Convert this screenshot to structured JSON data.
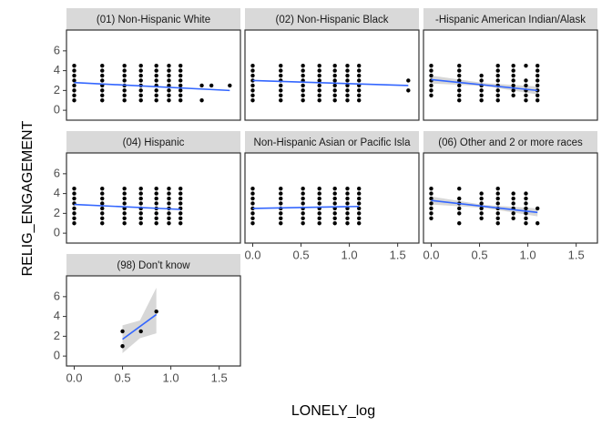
{
  "chart_data": {
    "type": "faceted-scatter",
    "x_label": "LONELY_log",
    "y_label": "RELIG_ENGAGEMENT",
    "xlim": [
      -0.08,
      1.72
    ],
    "ylim": [
      -1.0,
      8.1
    ],
    "xticks": [
      {
        "value": 0,
        "label": "0.0"
      },
      {
        "value": 0.5,
        "label": "0.5"
      },
      {
        "value": 1,
        "label": "1.0"
      },
      {
        "value": 1.5,
        "label": "1.5"
      }
    ],
    "yticks": [
      0,
      2,
      4,
      6
    ],
    "point_color": "#000000",
    "fit_color": "#3366ff",
    "band_color": "#bdbdbd",
    "facets": [
      {
        "label": "(01) Non-Hispanic White",
        "columns": [
          {
            "x": 0,
            "y": [
              1,
              1.5,
              2,
              2.5,
              3,
              3.5,
              4,
              4.5
            ]
          },
          {
            "x": 0.29,
            "y": [
              1,
              1.5,
              2,
              2.5,
              3,
              3.5,
              4,
              4.5
            ]
          },
          {
            "x": 0.52,
            "y": [
              1,
              1.5,
              2,
              2.5,
              3,
              3.5,
              4,
              4.5
            ]
          },
          {
            "x": 0.69,
            "y": [
              1,
              1.5,
              2,
              2.5,
              3,
              3.5,
              4,
              4.5
            ]
          },
          {
            "x": 0.85,
            "y": [
              1,
              1.5,
              2,
              2.5,
              3,
              3.5,
              4,
              4.5
            ]
          },
          {
            "x": 0.98,
            "y": [
              1,
              1.5,
              2,
              2.5,
              3,
              3.5,
              4,
              4.5
            ]
          },
          {
            "x": 1.1,
            "y": [
              1,
              1.5,
              2,
              2.5,
              3,
              3.5,
              4,
              4.5
            ]
          },
          {
            "x": 1.32,
            "y": [
              1,
              2.5
            ]
          },
          {
            "x": 1.42,
            "y": [
              2.5
            ]
          },
          {
            "x": 1.61,
            "y": [
              2.5
            ]
          }
        ],
        "fit": {
          "x": [
            0,
            1.61
          ],
          "y": [
            2.8,
            2.0
          ]
        }
      },
      {
        "label": "(02) Non-Hispanic Black",
        "columns": [
          {
            "x": 0,
            "y": [
              1,
              1.5,
              2,
              2.5,
              3,
              3.5,
              4,
              4.5
            ]
          },
          {
            "x": 0.29,
            "y": [
              1,
              1.5,
              2,
              2.5,
              3,
              3.5,
              4,
              4.5
            ]
          },
          {
            "x": 0.52,
            "y": [
              1,
              1.5,
              2,
              2.5,
              3,
              3.5,
              4,
              4.5
            ]
          },
          {
            "x": 0.69,
            "y": [
              1,
              1.5,
              2,
              2.5,
              3,
              3.5,
              4,
              4.5
            ]
          },
          {
            "x": 0.85,
            "y": [
              1,
              1.5,
              2,
              2.5,
              3,
              3.5,
              4,
              4.5
            ]
          },
          {
            "x": 0.98,
            "y": [
              1,
              1.5,
              2,
              2.5,
              3,
              3.5,
              4,
              4.5
            ]
          },
          {
            "x": 1.1,
            "y": [
              1,
              1.5,
              2,
              2.5,
              3,
              3.5,
              4,
              4.5
            ]
          },
          {
            "x": 1.61,
            "y": [
              2,
              3
            ]
          }
        ],
        "fit": {
          "x": [
            0,
            1.61
          ],
          "y": [
            3.0,
            2.5
          ]
        }
      },
      {
        "label": "-Hispanic American Indian/Alask",
        "columns": [
          {
            "x": 0,
            "y": [
              1.5,
              2,
              2.5,
              3,
              3.5,
              4,
              4.5
            ]
          },
          {
            "x": 0.29,
            "y": [
              1,
              1.5,
              2,
              2.5,
              3,
              3.5,
              4,
              4.5
            ]
          },
          {
            "x": 0.52,
            "y": [
              1,
              1.5,
              2,
              2.5,
              3,
              3.5
            ]
          },
          {
            "x": 0.69,
            "y": [
              1,
              1.5,
              2,
              2.5,
              3,
              3.5,
              4,
              4.5
            ]
          },
          {
            "x": 0.85,
            "y": [
              1.5,
              2,
              2.5,
              3,
              3.5,
              4,
              4.5
            ]
          },
          {
            "x": 0.98,
            "y": [
              1,
              1.5,
              2,
              2.5,
              3,
              4.5
            ]
          },
          {
            "x": 1.1,
            "y": [
              1,
              1.5,
              2,
              2.5,
              3,
              3.5,
              4,
              4.5
            ]
          }
        ],
        "fit": {
          "x": [
            0,
            1.1
          ],
          "y": [
            3.1,
            2.0
          ]
        },
        "band": {
          "x": [
            0,
            0.55,
            1.1
          ],
          "lower": [
            2.7,
            2.45,
            1.6
          ],
          "upper": [
            3.5,
            2.75,
            2.4
          ]
        }
      },
      {
        "label": "(04) Hispanic",
        "columns": [
          {
            "x": 0,
            "y": [
              1,
              1.5,
              2,
              2.5,
              3,
              3.5,
              4,
              4.5
            ]
          },
          {
            "x": 0.29,
            "y": [
              1,
              1.5,
              2,
              2.5,
              3,
              3.5,
              4,
              4.5
            ]
          },
          {
            "x": 0.52,
            "y": [
              1,
              1.5,
              2,
              2.5,
              3,
              3.5,
              4,
              4.5
            ]
          },
          {
            "x": 0.69,
            "y": [
              1,
              1.5,
              2,
              2.5,
              3,
              3.5,
              4,
              4.5
            ]
          },
          {
            "x": 0.85,
            "y": [
              1,
              1.5,
              2,
              2.5,
              3,
              3.5,
              4,
              4.5
            ]
          },
          {
            "x": 0.98,
            "y": [
              1,
              1.5,
              2,
              2.5,
              3,
              3.5,
              4,
              4.5
            ]
          },
          {
            "x": 1.1,
            "y": [
              1,
              1.5,
              2,
              2.5,
              3,
              3.5,
              4,
              4.5
            ]
          }
        ],
        "fit": {
          "x": [
            0,
            1.1
          ],
          "y": [
            2.9,
            2.4
          ]
        }
      },
      {
        "label": "Non-Hispanic Asian or Pacific Isla",
        "columns": [
          {
            "x": 0,
            "y": [
              1,
              1.5,
              2,
              2.5,
              3,
              3.5,
              4,
              4.5
            ]
          },
          {
            "x": 0.29,
            "y": [
              1,
              1.5,
              2,
              2.5,
              3,
              3.5,
              4,
              4.5
            ]
          },
          {
            "x": 0.52,
            "y": [
              1,
              1.5,
              2,
              2.5,
              3,
              3.5,
              4,
              4.5
            ]
          },
          {
            "x": 0.69,
            "y": [
              1,
              1.5,
              2,
              2.5,
              3,
              3.5,
              4,
              4.5
            ]
          },
          {
            "x": 0.85,
            "y": [
              1,
              1.5,
              2,
              2.5,
              3,
              3.5,
              4,
              4.5
            ]
          },
          {
            "x": 0.98,
            "y": [
              1,
              1.5,
              2,
              2.5,
              3,
              3.5,
              4,
              4.5
            ]
          },
          {
            "x": 1.1,
            "y": [
              1,
              1.5,
              2,
              2.5,
              3,
              3.5,
              4,
              4.5
            ]
          }
        ],
        "fit": {
          "x": [
            0,
            1.1
          ],
          "y": [
            2.5,
            2.7
          ]
        }
      },
      {
        "label": "(06) Other and 2 or more races",
        "columns": [
          {
            "x": 0,
            "y": [
              1.5,
              2,
              2.5,
              3,
              3.5,
              4,
              4.5
            ]
          },
          {
            "x": 0.29,
            "y": [
              1,
              2,
              2.5,
              3,
              3.5,
              4.5
            ]
          },
          {
            "x": 0.52,
            "y": [
              1.5,
              2,
              2.5,
              3,
              3.5,
              4
            ]
          },
          {
            "x": 0.69,
            "y": [
              1,
              1.5,
              2,
              2.5,
              3,
              3.5,
              4,
              4.5
            ]
          },
          {
            "x": 0.85,
            "y": [
              1.5,
              2,
              2.5,
              3,
              3.5,
              4
            ]
          },
          {
            "x": 0.98,
            "y": [
              1,
              1.5,
              2,
              2.5,
              3,
              3.5,
              4
            ]
          },
          {
            "x": 1.1,
            "y": [
              1,
              2.5
            ]
          }
        ],
        "fit": {
          "x": [
            0,
            1.1
          ],
          "y": [
            3.3,
            2.1
          ]
        },
        "band": {
          "x": [
            0,
            0.55,
            1.1
          ],
          "lower": [
            2.9,
            2.55,
            1.7
          ],
          "upper": [
            3.7,
            2.85,
            2.5
          ]
        }
      },
      {
        "label": "(98) Don't know",
        "columns": [
          {
            "x": 0.5,
            "y": [
              1,
              2.5
            ]
          },
          {
            "x": 0.69,
            "y": [
              2.5
            ]
          },
          {
            "x": 0.85,
            "y": [
              4.5
            ]
          }
        ],
        "fit": {
          "x": [
            0.5,
            0.85
          ],
          "y": [
            1.7,
            4.2
          ]
        },
        "band": {
          "x": [
            0.5,
            0.68,
            0.85
          ],
          "lower": [
            0.3,
            1.8,
            2.3
          ],
          "upper": [
            3.1,
            3.6,
            6.9
          ]
        }
      }
    ]
  }
}
